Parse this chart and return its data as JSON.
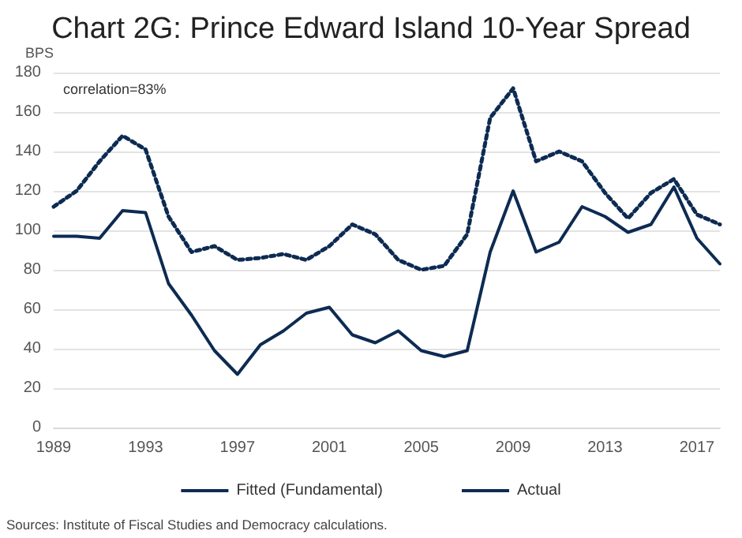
{
  "chart_data": {
    "type": "line",
    "title": "Chart 2G: Prince Edward Island 10-Year Spread",
    "ylabel": "BPS",
    "annotations": [
      "correlation=83%",
      "Sources: Institute of Fiscal Studies and Democracy calculations."
    ],
    "categories": [
      "1989",
      null,
      null,
      null,
      "1993",
      null,
      null,
      null,
      "1997",
      null,
      null,
      null,
      "2001",
      null,
      null,
      null,
      "2005",
      null,
      null,
      null,
      "2009",
      null,
      null,
      null,
      "2013",
      null,
      null,
      null,
      "2017",
      null
    ],
    "series": [
      {
        "name": "Fitted (Fundamental)",
        "color": "#0d2b52",
        "line_style": "dotted",
        "values": [
          112,
          120,
          135,
          148,
          141,
          107,
          89,
          92,
          85,
          86,
          88,
          85,
          92,
          103,
          98,
          85,
          80,
          82,
          98,
          157,
          172,
          135,
          140,
          135,
          119,
          106,
          119,
          126,
          108,
          103
        ]
      },
      {
        "name": "Actual",
        "color": "#0d2b52",
        "line_style": "solid",
        "values": [
          97,
          97,
          96,
          110,
          109,
          73,
          57,
          39,
          27,
          42,
          49,
          58,
          61,
          47,
          43,
          49,
          39,
          36,
          39,
          89,
          120,
          89,
          94,
          112,
          107,
          99,
          103,
          122,
          96,
          83
        ]
      }
    ],
    "ylim": [
      0,
      180
    ],
    "yticks": [
      0,
      20,
      40,
      60,
      80,
      100,
      120,
      140,
      160,
      180
    ],
    "grid": "y",
    "legend": "bottom",
    "marker": "none"
  }
}
